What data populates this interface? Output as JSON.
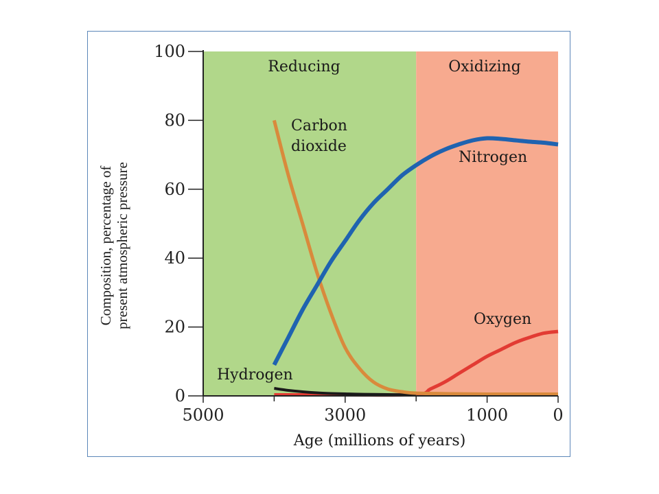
{
  "colors": {
    "frame_border": "#5b86b8",
    "reducing_bg": "#b1d78a",
    "oxidizing_bg": "#f7aa8f",
    "carbon_dioxide": "#d98a3c",
    "nitrogen": "#1f63b0",
    "oxygen": "#e23b33",
    "hydrogen": "#1a1a1a"
  },
  "chart_data": {
    "type": "line",
    "xlabel": "Age (millions of years)",
    "ylabel": [
      "Composition, percentage of",
      "present atmospheric pressure"
    ],
    "xlim": [
      5000,
      0
    ],
    "ylim": [
      0,
      100
    ],
    "xticks": [
      5000,
      3000,
      1000,
      0
    ],
    "yticks": [
      0,
      20,
      40,
      60,
      80,
      100
    ],
    "grid": false,
    "regions": [
      {
        "label": "Reducing",
        "from": 5000,
        "to": 2000,
        "color": "#b1d78a"
      },
      {
        "label": "Oxidizing",
        "from": 2000,
        "to": 0,
        "color": "#f7aa8f"
      }
    ],
    "series": [
      {
        "name": "Carbon dioxide",
        "label_lines": [
          "Carbon",
          "dioxide"
        ],
        "color": "#d98a3c",
        "x": [
          4000,
          3800,
          3600,
          3400,
          3200,
          3000,
          2800,
          2600,
          2400,
          2200,
          2000,
          1500,
          1000,
          500,
          0
        ],
        "y": [
          80,
          64,
          50,
          36,
          24,
          14,
          8,
          4,
          2,
          1.2,
          0.8,
          0.6,
          0.5,
          0.5,
          0.5
        ]
      },
      {
        "name": "Nitrogen",
        "color": "#1f63b0",
        "x": [
          4000,
          3800,
          3600,
          3400,
          3200,
          3000,
          2800,
          2600,
          2400,
          2200,
          2000,
          1800,
          1600,
          1400,
          1200,
          1000,
          800,
          600,
          400,
          200,
          0
        ],
        "y": [
          9,
          17,
          25,
          32,
          39,
          45,
          51,
          56,
          60,
          64,
          67,
          69.5,
          71.5,
          73,
          74.2,
          74.8,
          74.6,
          74.2,
          73.8,
          73.5,
          73
        ]
      },
      {
        "name": "Oxygen",
        "color": "#e23b33",
        "x": [
          4000,
          3000,
          2000,
          1800,
          1600,
          1400,
          1200,
          1000,
          800,
          600,
          400,
          200,
          0
        ],
        "y": [
          0.3,
          0.3,
          0.4,
          2,
          4,
          6.5,
          9,
          11.5,
          13.5,
          15.5,
          17,
          18.2,
          18.7
        ]
      },
      {
        "name": "Hydrogen",
        "color": "#1a1a1a",
        "x": [
          4000,
          3800,
          3600,
          3400,
          3200,
          3000,
          2800,
          2600,
          2400,
          2200,
          2000
        ],
        "y": [
          2.2,
          1.6,
          1.2,
          0.9,
          0.7,
          0.6,
          0.5,
          0.45,
          0.4,
          0.35,
          0.3
        ]
      }
    ]
  }
}
